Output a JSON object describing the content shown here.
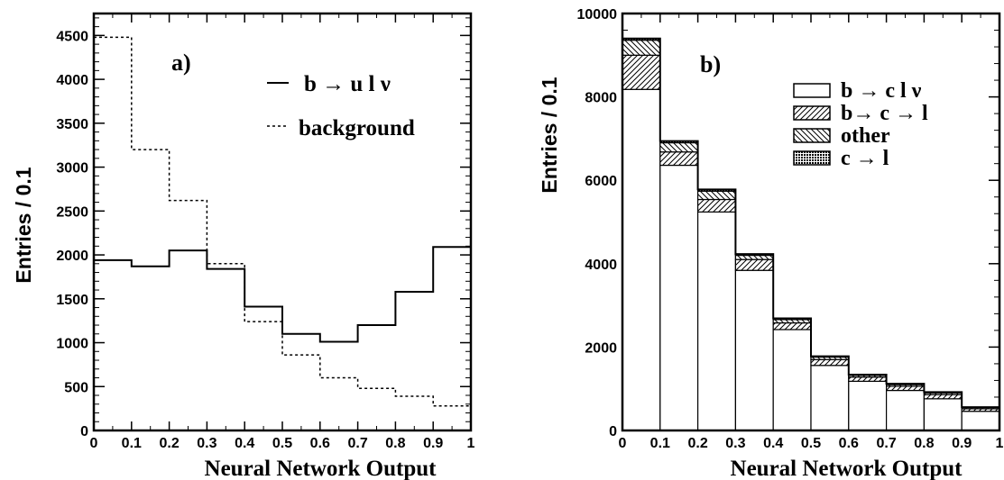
{
  "chart_data": [
    {
      "type": "histogram",
      "panel_label": "a)",
      "xlabel": "Neural Network Output",
      "ylabel": "Entries / 0.1",
      "xlim": [
        0,
        1
      ],
      "ylim": [
        0,
        4750
      ],
      "x_ticks": [
        "0",
        "0.1",
        "0.2",
        "0.3",
        "0.4",
        "0.5",
        "0.6",
        "0.7",
        "0.8",
        "0.9",
        "1"
      ],
      "y_ticks": [
        "0",
        "500",
        "1000",
        "1500",
        "2000",
        "2500",
        "3000",
        "3500",
        "4000",
        "4500"
      ],
      "y_tick_values": [
        0,
        500,
        1000,
        1500,
        2000,
        2500,
        3000,
        3500,
        4000,
        4500
      ],
      "bin_edges": [
        0,
        0.1,
        0.2,
        0.3,
        0.4,
        0.5,
        0.6,
        0.7,
        0.8,
        0.9,
        1.0
      ],
      "series": [
        {
          "name": "b → u l ν",
          "style": "solid",
          "values": [
            1940,
            1870,
            2050,
            1840,
            1410,
            1100,
            1010,
            1200,
            1580,
            2090
          ]
        },
        {
          "name": "background",
          "style": "dashed",
          "values": [
            4480,
            3200,
            2620,
            1900,
            1240,
            860,
            600,
            480,
            390,
            280
          ]
        }
      ]
    },
    {
      "type": "stacked-histogram",
      "panel_label": "b)",
      "xlabel": "Neural Network Output",
      "ylabel": "Entries / 0.1",
      "xlim": [
        0,
        1
      ],
      "ylim": [
        0,
        10000
      ],
      "x_ticks": [
        "0",
        "0.1",
        "0.2",
        "0.3",
        "0.4",
        "0.5",
        "0.6",
        "0.7",
        "0.8",
        "0.9",
        "1"
      ],
      "y_ticks": [
        "0",
        "2000",
        "4000",
        "6000",
        "8000",
        "10000"
      ],
      "y_tick_values": [
        0,
        2000,
        4000,
        6000,
        8000,
        10000
      ],
      "bin_edges": [
        0,
        0.1,
        0.2,
        0.3,
        0.4,
        0.5,
        0.6,
        0.7,
        0.8,
        0.9,
        1.0
      ],
      "series": [
        {
          "name": "b → c l ν",
          "fill": "white",
          "values": [
            8180,
            6360,
            5240,
            3840,
            2420,
            1560,
            1180,
            960,
            760,
            460
          ]
        },
        {
          "name": "b→ c → l",
          "fill": "hatch-forward",
          "values": [
            820,
            320,
            300,
            260,
            160,
            140,
            100,
            100,
            100,
            60
          ]
        },
        {
          "name": "other",
          "fill": "hatch-backward",
          "values": [
            360,
            220,
            200,
            100,
            80,
            60,
            40,
            40,
            40,
            30
          ]
        },
        {
          "name": "c → l",
          "fill": "dotted",
          "values": [
            40,
            40,
            40,
            30,
            30,
            20,
            20,
            20,
            20,
            10
          ]
        }
      ]
    }
  ]
}
